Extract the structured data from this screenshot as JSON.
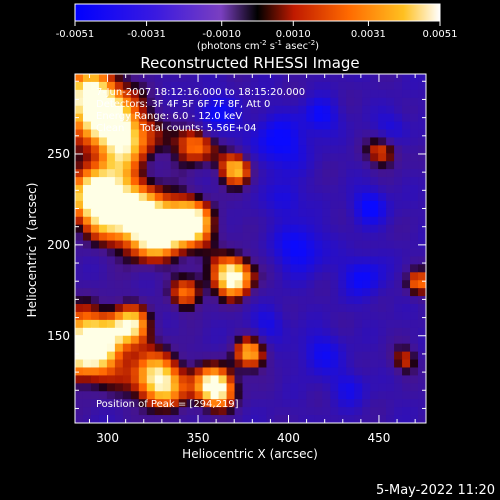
{
  "colorbar": {
    "ticks": [
      "-0.0051",
      "-0.0031",
      "-0.0010",
      "0.0010",
      "0.0031",
      "0.0051"
    ],
    "tick_values": [
      -0.0051,
      -0.0031,
      -0.001,
      0.001,
      0.0031,
      0.0051
    ],
    "unit_main": "(photons cm",
    "unit_sup1": "-2",
    "unit_mid": " s",
    "unit_sup2": "-1",
    "unit_mid2": " asec",
    "unit_sup3": "-2",
    "unit_end": ")",
    "colors": [
      "#0000ff",
      "#5a2ad0",
      "#7a3fc0",
      "#000000",
      "#cc1f00",
      "#ff8000",
      "#ffd040",
      "#ffffff"
    ]
  },
  "info": {
    "line1": "7-Jun-2007 18:12:16.000 to 18:15:20.000",
    "line2": "Detectors: 3F 4F 5F 6F 7F 8F, Att 0",
    "line3": "Energy Range: 6.0 - 12.0 keV",
    "line4": "Clean     Total counts: 5.56E+04",
    "peak": "Position of Peak = [294,219]"
  },
  "footer": {
    "date": "5-May-2022 11:20"
  },
  "chart_data": {
    "type": "heatmap",
    "title": "Reconstructed RHESSI Image",
    "xlabel": "Heliocentric X (arcsec)",
    "ylabel": "Heliocentric Y (arcsec)",
    "xlim": [
      282,
      476
    ],
    "ylim": [
      102,
      294
    ],
    "x_ticks": [
      300,
      350,
      400,
      450
    ],
    "y_ticks": [
      150,
      200,
      250
    ],
    "peak": [
      294,
      219
    ],
    "color_range": [
      -0.0051,
      0.0051
    ]
  }
}
